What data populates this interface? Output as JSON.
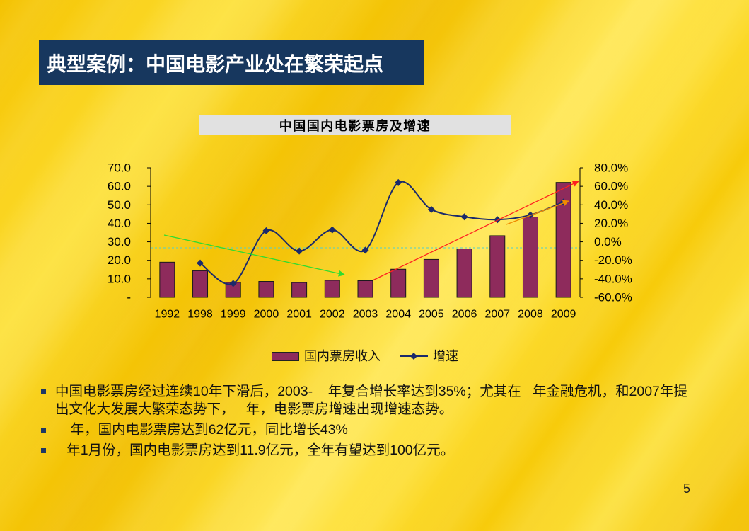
{
  "slide": {
    "title": "典型案例：中国电影产业处在繁荣起点",
    "page_number": "5",
    "colors": {
      "title_bg": "#17375e",
      "title_text": "#ffffff",
      "bullet_marker": "#1f3864"
    }
  },
  "chart_data": {
    "type": "bar",
    "title": "中国国内电影票房及增速",
    "categories": [
      "1992",
      "1998",
      "1999",
      "2000",
      "2001",
      "2002",
      "2003",
      "2004",
      "2005",
      "2006",
      "2007",
      "2008",
      "2009"
    ],
    "series": [
      {
        "name": "国内票房收入",
        "type": "bar",
        "axis": "left",
        "values": [
          19.0,
          14.4,
          8.1,
          8.6,
          8.0,
          9.2,
          9.0,
          15.2,
          20.5,
          26.2,
          33.3,
          43.4,
          62.1
        ]
      },
      {
        "name": "增速",
        "type": "line",
        "axis": "right",
        "values": [
          null,
          -23,
          -45,
          12,
          -10,
          13,
          -9,
          64,
          35,
          27,
          24,
          29,
          43
        ]
      }
    ],
    "y_ticks": [
      "70.0",
      "60.0",
      "50.0",
      "40.0",
      "30.0",
      "20.0",
      "10.0",
      "-"
    ],
    "y2_ticks": [
      "80.0%",
      "60.0%",
      "40.0%",
      "20.0%",
      "0.0%",
      "-20.0%",
      "-40.0%",
      "-60.0%"
    ],
    "ylim": [
      0,
      70
    ],
    "y2lim": [
      -60,
      80
    ],
    "grid": false,
    "legend": "bottom",
    "colors": {
      "bar": "#8e2b5c",
      "line": "#1b2a6b",
      "reference": "#4fcfcf"
    }
  },
  "bullets": [
    {
      "lines": [
        "中国电影票房经过连续10年下滑后，2003-    年复合增长率达到35%；尤其在   年金融危机，和2007年提",
        "出文化大发展大繁荣态势下，   年，电影票房增速出现增速态势。"
      ]
    },
    {
      "lines": [
        "    年，国内电影票房达到62亿元，同比增长43%"
      ]
    },
    {
      "lines": [
        "   年1月份，国内电影票房达到11.9亿元，全年有望达到100亿元。"
      ]
    }
  ]
}
